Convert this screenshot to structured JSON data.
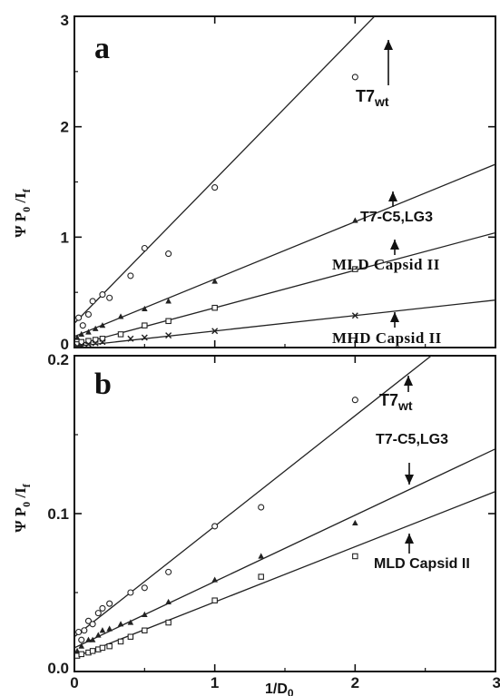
{
  "chart_data": [
    {
      "type": "scatter",
      "panel_label": "a",
      "ylabel": "ΨP₀ /I_f",
      "xlim": [
        0,
        3
      ],
      "ylim": [
        0,
        3
      ],
      "x_ticks": [
        "0",
        "1",
        "2",
        "3"
      ],
      "y_ticks": [
        "0",
        "1",
        "2",
        "3"
      ],
      "series": [
        {
          "name": "T7wt",
          "marker": "circle",
          "fit": {
            "intercept": 0.22,
            "slope": 1.3
          },
          "points": [
            [
              0.03,
              0.27
            ],
            [
              0.06,
              0.2
            ],
            [
              0.1,
              0.3
            ],
            [
              0.13,
              0.42
            ],
            [
              0.2,
              0.48
            ],
            [
              0.25,
              0.45
            ],
            [
              0.4,
              0.65
            ],
            [
              0.5,
              0.9
            ],
            [
              0.67,
              0.85
            ],
            [
              1.0,
              1.45
            ],
            [
              2.0,
              2.45
            ]
          ]
        },
        {
          "name": "T7-C5,LG3",
          "marker": "triangle",
          "fit": {
            "intercept": 0.1,
            "slope": 0.52
          },
          "points": [
            [
              0.02,
              0.09
            ],
            [
              0.05,
              0.12
            ],
            [
              0.1,
              0.14
            ],
            [
              0.15,
              0.17
            ],
            [
              0.2,
              0.2
            ],
            [
              0.33,
              0.28
            ],
            [
              0.5,
              0.35
            ],
            [
              0.67,
              0.42
            ],
            [
              1.0,
              0.6
            ],
            [
              2.0,
              1.15
            ]
          ]
        },
        {
          "name": "MLD Capsid II",
          "marker": "square",
          "fit": {
            "intercept": 0.02,
            "slope": 0.34
          },
          "points": [
            [
              0.02,
              0.03
            ],
            [
              0.05,
              0.05
            ],
            [
              0.1,
              0.06
            ],
            [
              0.15,
              0.07
            ],
            [
              0.2,
              0.08
            ],
            [
              0.33,
              0.12
            ],
            [
              0.5,
              0.2
            ],
            [
              0.67,
              0.24
            ],
            [
              1.0,
              0.36
            ],
            [
              2.0,
              0.71
            ]
          ]
        },
        {
          "name": "MHD Capsid II",
          "marker": "cross",
          "fit": {
            "intercept": 0.01,
            "slope": 0.14
          },
          "points": [
            [
              0.02,
              0.01
            ],
            [
              0.05,
              0.02
            ],
            [
              0.1,
              0.03
            ],
            [
              0.15,
              0.04
            ],
            [
              0.2,
              0.05
            ],
            [
              0.4,
              0.08
            ],
            [
              0.5,
              0.09
            ],
            [
              0.67,
              0.11
            ],
            [
              1.0,
              0.15
            ],
            [
              2.0,
              0.29
            ]
          ]
        }
      ]
    },
    {
      "type": "scatter",
      "panel_label": "b",
      "ylabel": "ΨP₀ /I_f",
      "xlabel": "1/D₀",
      "xlim": [
        0,
        3
      ],
      "ylim": [
        0,
        0.2
      ],
      "x_ticks": [
        "0",
        "1",
        "2",
        "3"
      ],
      "y_ticks": [
        "0.0",
        "0.1",
        "0.2"
      ],
      "series": [
        {
          "name": "T7wt",
          "marker": "circle",
          "fit": {
            "intercept": 0.022,
            "slope": 0.07
          },
          "points": [
            [
              0.03,
              0.025
            ],
            [
              0.05,
              0.02
            ],
            [
              0.07,
              0.026
            ],
            [
              0.1,
              0.032
            ],
            [
              0.13,
              0.03
            ],
            [
              0.17,
              0.037
            ],
            [
              0.2,
              0.04
            ],
            [
              0.25,
              0.043
            ],
            [
              0.4,
              0.05
            ],
            [
              0.5,
              0.053
            ],
            [
              0.67,
              0.063
            ],
            [
              1.0,
              0.092
            ],
            [
              1.33,
              0.104
            ],
            [
              2.0,
              0.172
            ]
          ]
        },
        {
          "name": "T7-C5,LG3",
          "marker": "triangle",
          "fit": {
            "intercept": 0.015,
            "slope": 0.042
          },
          "points": [
            [
              0.02,
              0.013
            ],
            [
              0.05,
              0.016
            ],
            [
              0.1,
              0.02
            ],
            [
              0.13,
              0.02
            ],
            [
              0.17,
              0.023
            ],
            [
              0.2,
              0.026
            ],
            [
              0.25,
              0.027
            ],
            [
              0.33,
              0.03
            ],
            [
              0.4,
              0.031
            ],
            [
              0.5,
              0.036
            ],
            [
              0.67,
              0.044
            ],
            [
              1.0,
              0.058
            ],
            [
              1.33,
              0.073
            ],
            [
              2.0,
              0.094
            ]
          ]
        },
        {
          "name": "MLD Capsid II",
          "marker": "square",
          "fit": {
            "intercept": 0.009,
            "slope": 0.035
          },
          "points": [
            [
              0.02,
              0.01
            ],
            [
              0.05,
              0.011
            ],
            [
              0.1,
              0.012
            ],
            [
              0.13,
              0.013
            ],
            [
              0.17,
              0.014
            ],
            [
              0.2,
              0.015
            ],
            [
              0.25,
              0.016
            ],
            [
              0.33,
              0.019
            ],
            [
              0.4,
              0.022
            ],
            [
              0.5,
              0.026
            ],
            [
              0.67,
              0.031
            ],
            [
              1.0,
              0.045
            ],
            [
              1.33,
              0.06
            ],
            [
              2.0,
              0.073
            ]
          ]
        }
      ]
    }
  ],
  "labels": {
    "panel_a": "a",
    "panel_b": "b",
    "ylabel_psi": "Ψ",
    "ylabel_p": "P",
    "ylabel_sub0": "0",
    "ylabel_slash_i": "/I",
    "ylabel_sub_f": "f",
    "xlabel_main": "1/D",
    "xlabel_sub": "0",
    "t7_main": "T7",
    "t7_sub": "wt",
    "t7c5": "T7-C5,LG3",
    "mld": "MLD Capsid II",
    "mhd": "MHD Capsid II"
  }
}
